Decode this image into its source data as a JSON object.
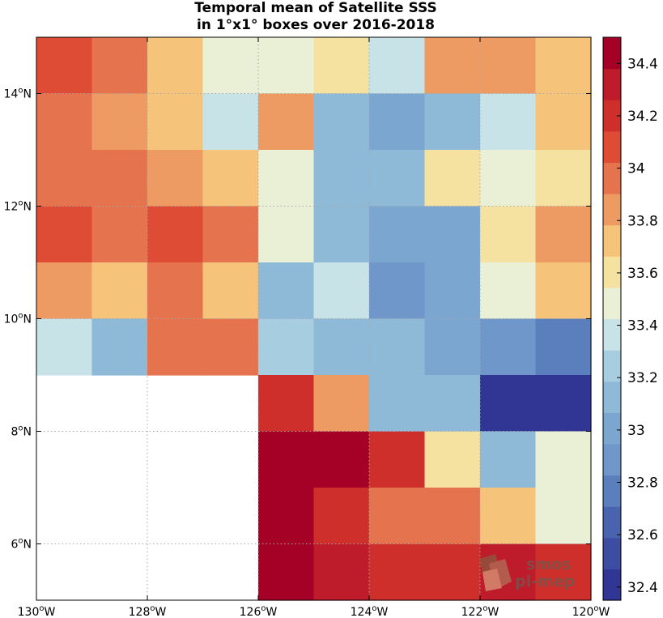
{
  "chart_data": {
    "type": "heatmap",
    "title_lines": [
      "Temporal mean of Satellite SSS",
      "in 1°x1° boxes over 2016-2018"
    ],
    "x_edges": [
      -130,
      -129,
      -128,
      -127,
      -126,
      -125,
      -124,
      -123,
      -122,
      -121,
      -120
    ],
    "y_edges": [
      5,
      6,
      7,
      8,
      9,
      10,
      11,
      12,
      13,
      14,
      15
    ],
    "xlim": [
      -130,
      -120
    ],
    "ylim": [
      5,
      15
    ],
    "x_tick_labels": [
      "130°W",
      "128°W",
      "126°W",
      "124°W",
      "122°W",
      "120°W"
    ],
    "y_tick_labels": [
      "6°N",
      "8°N",
      "10°N",
      "12°N",
      "14°N"
    ],
    "grid": true,
    "values_rows_top_to_bottom": [
      [
        34.05,
        33.95,
        33.75,
        33.52,
        33.52,
        33.65,
        33.42,
        33.85,
        33.85,
        33.75
      ],
      [
        33.95,
        33.85,
        33.75,
        33.42,
        33.85,
        33.15,
        32.95,
        33.15,
        33.42,
        33.75
      ],
      [
        33.95,
        33.95,
        33.85,
        33.75,
        33.52,
        33.15,
        33.15,
        33.65,
        33.52,
        33.65
      ],
      [
        34.05,
        33.95,
        34.05,
        33.95,
        33.52,
        33.15,
        33.05,
        33.05,
        33.65,
        33.85
      ],
      [
        33.85,
        33.75,
        33.95,
        33.75,
        33.15,
        33.42,
        32.85,
        33.05,
        33.52,
        33.75
      ],
      [
        33.42,
        33.15,
        33.95,
        33.95,
        33.25,
        33.15,
        33.15,
        33.05,
        32.85,
        32.75
      ],
      [
        null,
        null,
        null,
        null,
        34.15,
        33.85,
        33.15,
        33.15,
        32.45,
        32.45
      ],
      [
        null,
        null,
        null,
        null,
        34.5,
        34.5,
        34.15,
        33.65,
        33.15,
        33.52
      ],
      [
        null,
        null,
        null,
        null,
        34.5,
        34.25,
        33.95,
        33.95,
        33.75,
        33.52
      ],
      [
        null,
        null,
        null,
        null,
        34.5,
        34.35,
        34.15,
        34.25,
        34.35,
        34.15
      ]
    ],
    "colorbar": {
      "range": [
        32.35,
        34.5
      ],
      "tick_labels": [
        "32.4",
        "32.6",
        "32.8",
        "33",
        "33.2",
        "33.4",
        "33.6",
        "33.8",
        "34",
        "34.2",
        "34.4"
      ],
      "colors_bottom_to_top": [
        "#313695",
        "#3d4da1",
        "#4a63ae",
        "#5b7fbd",
        "#6f97c9",
        "#7ba6d0",
        "#8ebad8",
        "#a6cee0",
        "#c7e3e8",
        "#e9f0d5",
        "#f6e2a0",
        "#f5c47a",
        "#ed9b63",
        "#e5734d",
        "#de4c35",
        "#cf2f2a",
        "#bf1c2b",
        "#a50026"
      ]
    },
    "watermark": {
      "line1": "smos",
      "line2": "pi-mep"
    }
  }
}
